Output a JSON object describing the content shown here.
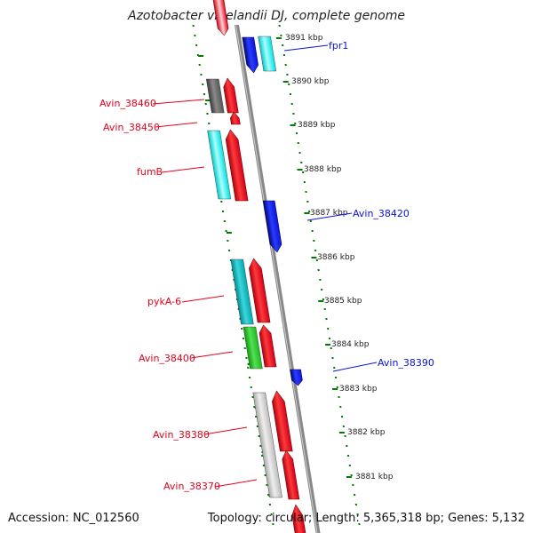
{
  "title": "Azotobacter vinelandii DJ, complete genome",
  "footer": {
    "accession": "Accession: NC_012560",
    "summary": "Topology: circular; Length: 5,365,318 bp; Genes: 5,132"
  },
  "colors": {
    "forward_strand": "#e8001c",
    "reverse_strand": "#0a14d8",
    "forward_label": "#e8001c",
    "reverse_label": "#0a14d8",
    "axis": "#888888",
    "ticks": "#007a00"
  },
  "ticks": [
    "3891 kbp",
    "3890 kbp",
    "3889 kbp",
    "3888 kbp",
    "3887 kbp",
    "3886 kbp",
    "3885 kbp",
    "3884 kbp",
    "3883 kbp",
    "3882 kbp",
    "3881 kbp"
  ],
  "labels": [
    {
      "id": "fpr1",
      "text": "fpr1",
      "side": "right"
    },
    {
      "id": "avin-38460",
      "text": "Avin_38460",
      "side": "left"
    },
    {
      "id": "avin-38450",
      "text": "Avin_38450",
      "side": "left"
    },
    {
      "id": "fumb",
      "text": "fumB",
      "side": "left"
    },
    {
      "id": "avin-38420",
      "text": "Avin_38420",
      "side": "right"
    },
    {
      "id": "pyka-6",
      "text": "pykA-6",
      "side": "left"
    },
    {
      "id": "avin-38400",
      "text": "Avin_38400",
      "side": "left"
    },
    {
      "id": "avin-38390",
      "text": "Avin_38390",
      "side": "right"
    },
    {
      "id": "avin-38380",
      "text": "Avin_38380",
      "side": "left"
    },
    {
      "id": "avin-38370",
      "text": "Avin_38370",
      "side": "left"
    }
  ]
}
